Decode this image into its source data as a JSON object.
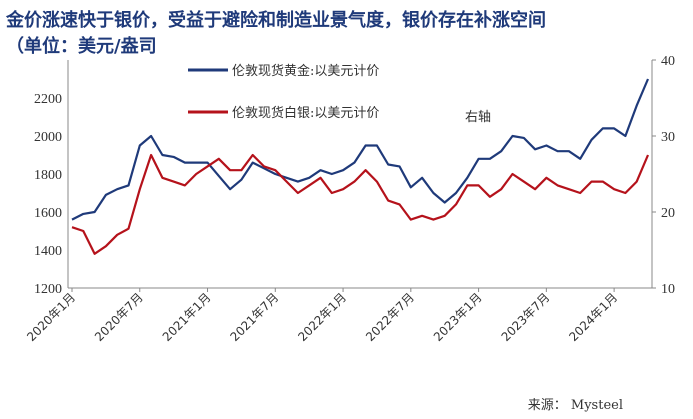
{
  "title": "金价涨速快于银价，受益于避险和制造业景气度，银价存在补涨空间（单位：美元/盎司",
  "source": "来源： Mysteel",
  "chart_data": {
    "type": "line",
    "title": "金价涨速快于银价，受益于避险和制造业景气度，银价存在补涨空间（单位：美元/盎司",
    "y_left_lim": [
      1200,
      2400
    ],
    "y_left_ticks": [
      "1200",
      "1400",
      "1600",
      "1800",
      "2000",
      "2200"
    ],
    "y_right_lim": [
      10,
      40
    ],
    "y_right_ticks": [
      "10",
      "20",
      "30",
      "40"
    ],
    "x_ticks": [
      "2020年1月",
      "2020年7月",
      "2021年1月",
      "2021年7月",
      "2022年1月",
      "2022年7月",
      "2023年1月",
      "2023年7月",
      "2024年1月"
    ],
    "right_axis_note": "右轴",
    "legend_position": "top-left",
    "series": [
      {
        "name": "伦敦现货黄金:以美元计价",
        "axis": "left",
        "color": "#1f3a7a",
        "x": [
          "2020-01",
          "2020-02",
          "2020-03",
          "2020-04",
          "2020-05",
          "2020-06",
          "2020-07",
          "2020-08",
          "2020-09",
          "2020-10",
          "2020-11",
          "2020-12",
          "2021-01",
          "2021-02",
          "2021-03",
          "2021-04",
          "2021-05",
          "2021-06",
          "2021-07",
          "2021-08",
          "2021-09",
          "2021-10",
          "2021-11",
          "2021-12",
          "2022-01",
          "2022-02",
          "2022-03",
          "2022-04",
          "2022-05",
          "2022-06",
          "2022-07",
          "2022-08",
          "2022-09",
          "2022-10",
          "2022-11",
          "2022-12",
          "2023-01",
          "2023-02",
          "2023-03",
          "2023-04",
          "2023-05",
          "2023-06",
          "2023-07",
          "2023-08",
          "2023-09",
          "2023-10",
          "2023-11",
          "2023-12",
          "2024-01",
          "2024-02",
          "2024-03",
          "2024-04"
        ],
        "values": [
          1560,
          1590,
          1600,
          1690,
          1720,
          1740,
          1950,
          2000,
          1900,
          1890,
          1860,
          1860,
          1860,
          1790,
          1720,
          1770,
          1860,
          1830,
          1800,
          1780,
          1760,
          1780,
          1820,
          1800,
          1820,
          1860,
          1950,
          1950,
          1850,
          1840,
          1730,
          1780,
          1700,
          1650,
          1700,
          1780,
          1880,
          1880,
          1920,
          2000,
          1990,
          1930,
          1950,
          1920,
          1920,
          1880,
          1980,
          2040,
          2040,
          2000,
          2160,
          2300
        ]
      },
      {
        "name": "伦敦现货白银:以美元计价",
        "axis": "right",
        "color": "#b5121b",
        "x": [
          "2020-01",
          "2020-02",
          "2020-03",
          "2020-04",
          "2020-05",
          "2020-06",
          "2020-07",
          "2020-08",
          "2020-09",
          "2020-10",
          "2020-11",
          "2020-12",
          "2021-01",
          "2021-02",
          "2021-03",
          "2021-04",
          "2021-05",
          "2021-06",
          "2021-07",
          "2021-08",
          "2021-09",
          "2021-10",
          "2021-11",
          "2021-12",
          "2022-01",
          "2022-02",
          "2022-03",
          "2022-04",
          "2022-05",
          "2022-06",
          "2022-07",
          "2022-08",
          "2022-09",
          "2022-10",
          "2022-11",
          "2022-12",
          "2023-01",
          "2023-02",
          "2023-03",
          "2023-04",
          "2023-05",
          "2023-06",
          "2023-07",
          "2023-08",
          "2023-09",
          "2023-10",
          "2023-11",
          "2023-12",
          "2024-01",
          "2024-02",
          "2024-03",
          "2024-04"
        ],
        "values": [
          18,
          17.5,
          14.5,
          15.5,
          17,
          17.8,
          23,
          27.5,
          24.5,
          24,
          23.5,
          25,
          26,
          27,
          25.5,
          25.5,
          27.5,
          26,
          25.5,
          24,
          22.5,
          23.5,
          24.5,
          22.5,
          23,
          24,
          25.5,
          24,
          21.5,
          21,
          19,
          19.5,
          19,
          19.5,
          21,
          23.5,
          23.5,
          22,
          23,
          25,
          24,
          23,
          24.5,
          23.5,
          23,
          22.5,
          24,
          24,
          23,
          22.5,
          24,
          27.5
        ]
      }
    ]
  }
}
